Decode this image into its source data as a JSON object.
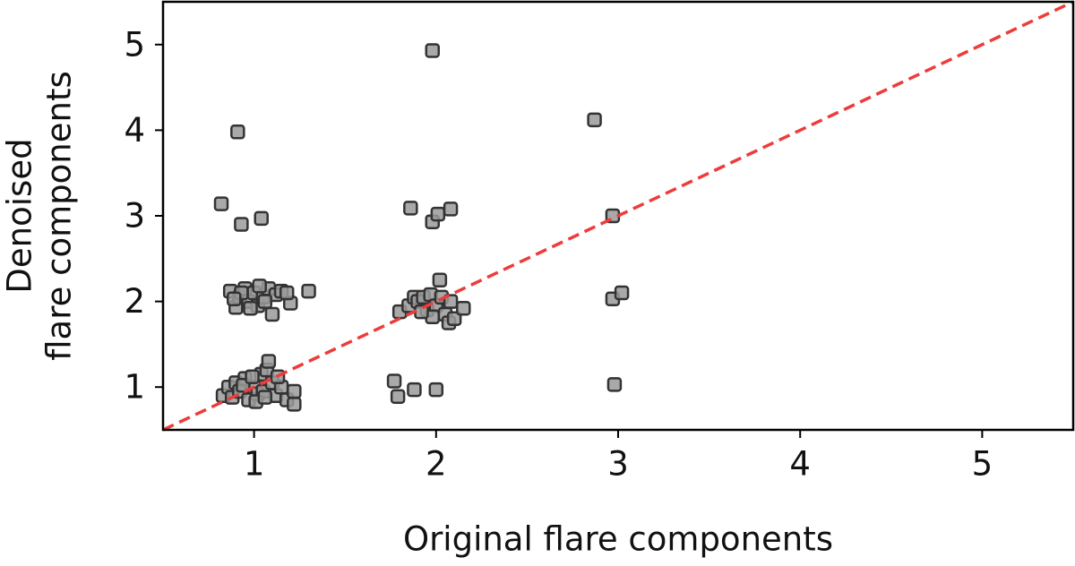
{
  "chart_data": {
    "type": "scatter",
    "xlabel": "Original flare components",
    "ylabel": [
      "Denoised",
      "flare components"
    ],
    "xlim": [
      0.5,
      5.5
    ],
    "ylim": [
      0.5,
      5.5
    ],
    "xticks": [
      1,
      2,
      3,
      4,
      5
    ],
    "yticks": [
      1,
      2,
      3,
      4,
      5
    ],
    "grid": false,
    "reference_line": {
      "x": [
        0.5,
        5.5
      ],
      "y": [
        0.5,
        5.5
      ],
      "color": "#ee3b3b",
      "style": "dashed"
    },
    "series": [
      {
        "color": "#9a9a9a",
        "x": [
          0.91,
          0.82,
          0.93,
          1.04,
          1.98,
          2.87,
          1.86,
          1.98,
          2.01,
          2.08,
          2.97,
          2.97,
          3.02,
          2.98,
          1.77,
          1.79,
          1.88,
          2.0,
          0.87,
          0.9,
          0.92,
          0.95,
          0.97,
          1.0,
          1.02,
          1.05,
          1.08,
          1.1,
          1.12,
          1.15,
          1.2,
          1.18,
          1.3,
          0.93,
          0.98,
          1.06,
          0.89,
          1.03,
          0.83,
          0.86,
          0.88,
          0.9,
          0.92,
          0.95,
          0.97,
          1.0,
          1.02,
          1.04,
          1.05,
          1.07,
          1.08,
          1.1,
          1.12,
          1.15,
          1.18,
          1.22,
          1.22,
          0.94,
          0.99,
          1.01,
          1.06,
          1.13,
          1.8,
          1.85,
          1.88,
          1.9,
          1.93,
          1.95,
          1.97,
          2.0,
          2.02,
          2.03,
          2.05,
          2.07,
          2.08,
          2.1,
          2.15,
          1.98,
          1.92
        ],
        "values": [
          3.98,
          3.14,
          2.9,
          2.97,
          4.93,
          4.12,
          3.09,
          2.93,
          3.02,
          3.08,
          3.0,
          2.03,
          2.1,
          1.03,
          1.07,
          0.89,
          0.97,
          0.97,
          2.12,
          1.93,
          2.05,
          2.15,
          2.0,
          2.1,
          1.95,
          2.05,
          2.15,
          1.85,
          2.08,
          2.12,
          1.98,
          2.1,
          2.12,
          2.1,
          1.92,
          2.0,
          2.03,
          2.18,
          0.9,
          1.0,
          0.88,
          1.05,
          0.95,
          1.1,
          0.85,
          1.0,
          0.92,
          1.15,
          0.95,
          1.2,
          1.3,
          1.05,
          0.9,
          1.0,
          0.85,
          0.95,
          0.8,
          1.02,
          1.12,
          0.83,
          0.88,
          1.12,
          1.88,
          1.95,
          2.05,
          2.0,
          2.05,
          1.9,
          2.08,
          1.95,
          2.25,
          2.05,
          1.85,
          1.75,
          2.0,
          1.8,
          1.92,
          1.82,
          1.88
        ]
      }
    ]
  }
}
